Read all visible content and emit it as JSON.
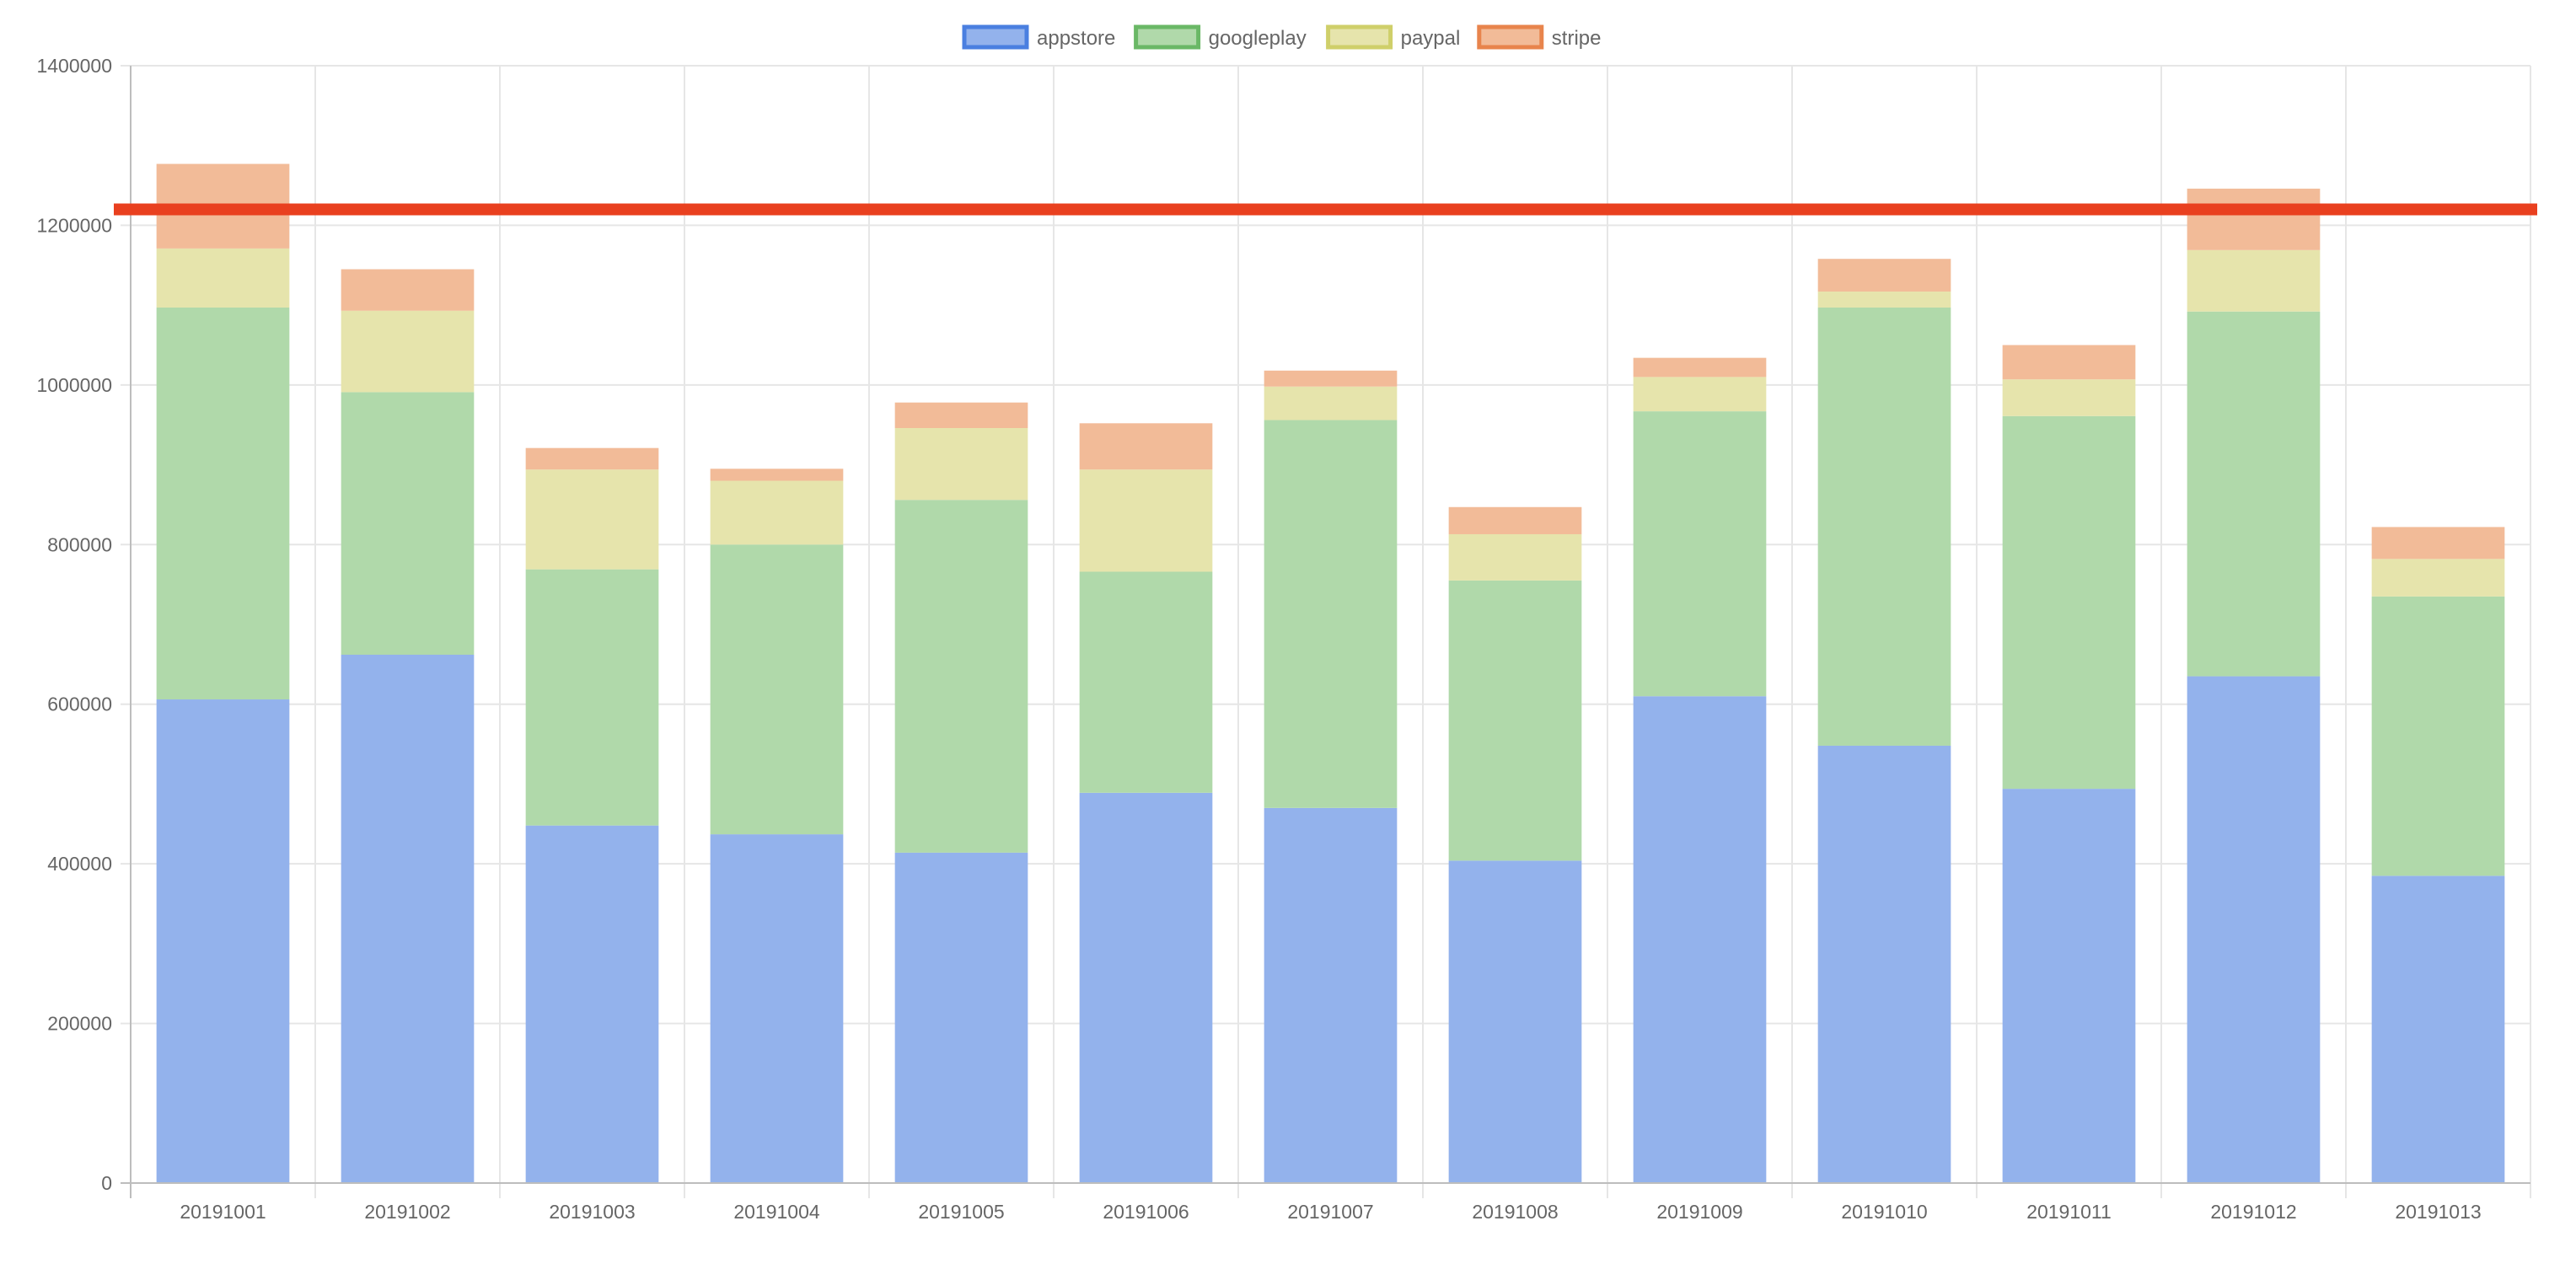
{
  "chart_data": {
    "type": "bar",
    "stacked": true,
    "title": "",
    "xlabel": "",
    "ylabel": "",
    "categories": [
      "20191001",
      "20191002",
      "20191003",
      "20191004",
      "20191005",
      "20191006",
      "20191007",
      "20191008",
      "20191009",
      "20191010",
      "20191011",
      "20191012",
      "20191013"
    ],
    "ylim": [
      0,
      1400000
    ],
    "yticks": [
      "0",
      "200000",
      "400000",
      "600000",
      "800000",
      "1000000",
      "1200000",
      "1400000"
    ],
    "grid": true,
    "legend_position": "top-center",
    "series": [
      {
        "name": "appstore",
        "color": "#4a7fe0",
        "fill": "#93b2ec",
        "values": [
          606000,
          662000,
          448000,
          437000,
          414000,
          489000,
          470000,
          404000,
          610000,
          548000,
          494000,
          635000,
          385000
        ]
      },
      {
        "name": "googleplay",
        "color": "#6ab866",
        "fill": "#b0d9aa",
        "values": [
          491000,
          329000,
          321000,
          363000,
          442000,
          277000,
          486000,
          351000,
          357000,
          549000,
          467000,
          457000,
          350000
        ]
      },
      {
        "name": "paypal",
        "color": "#cfcf6a",
        "fill": "#e6e4ac",
        "values": [
          74000,
          102000,
          125000,
          80000,
          90000,
          128000,
          42000,
          58000,
          43000,
          20000,
          46000,
          77000,
          47000
        ]
      },
      {
        "name": "stripe",
        "color": "#e8844c",
        "fill": "#f2bb98",
        "values": [
          106000,
          52000,
          27000,
          15000,
          32000,
          58000,
          20000,
          34000,
          24000,
          41000,
          43000,
          77000,
          40000
        ]
      }
    ],
    "reference_line": {
      "value": 1220000,
      "color": "#e9401f"
    }
  }
}
